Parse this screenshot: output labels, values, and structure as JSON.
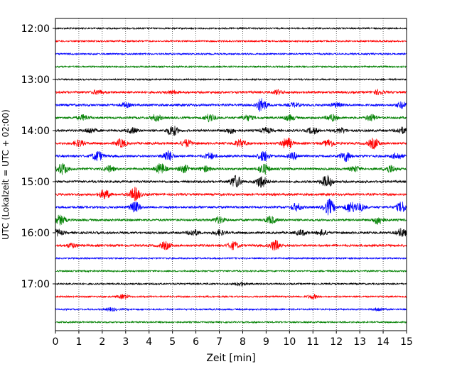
{
  "chart_data": {
    "type": "line",
    "title": "",
    "xlabel": "Zeit  [min]",
    "ylabel": "UTC (Lokalzeit = UTC + 02:00)",
    "xlim": [
      0,
      15
    ],
    "x_ticks": [
      "0",
      "1",
      "2",
      "3",
      "4",
      "5",
      "6",
      "7",
      "8",
      "9",
      "10",
      "11",
      "12",
      "13",
      "14",
      "15"
    ],
    "y_ticks": [
      "12:00",
      "13:00",
      "14:00",
      "15:00",
      "16:00",
      "17:00"
    ],
    "trace_interval_min": 15,
    "grid": "vertical dotted",
    "trace_colors": [
      "#000000",
      "#ff0000",
      "#0000ff",
      "#008000"
    ],
    "traces": [
      {
        "start": "12:00",
        "color": "#000000",
        "events": []
      },
      {
        "start": "12:15",
        "color": "#ff0000",
        "events": []
      },
      {
        "start": "12:30",
        "color": "#0000ff",
        "events": []
      },
      {
        "start": "12:45",
        "color": "#008000",
        "events": []
      },
      {
        "start": "13:00",
        "color": "#000000",
        "events": []
      },
      {
        "start": "13:15",
        "color": "#ff0000",
        "events": [
          [
            1.8,
            0.4
          ],
          [
            5.0,
            0.3
          ],
          [
            9.5,
            0.4
          ],
          [
            13.8,
            0.4
          ]
        ]
      },
      {
        "start": "13:30",
        "color": "#0000ff",
        "events": [
          [
            3.0,
            0.4
          ],
          [
            8.8,
            1.3
          ],
          [
            10.2,
            0.4
          ],
          [
            12.0,
            0.4
          ],
          [
            14.8,
            0.6
          ]
        ]
      },
      {
        "start": "13:45",
        "color": "#008000",
        "events": [
          [
            1.2,
            0.5
          ],
          [
            4.3,
            0.6
          ],
          [
            6.6,
            0.8
          ],
          [
            8.2,
            0.5
          ],
          [
            10.0,
            0.5
          ],
          [
            11.8,
            0.6
          ],
          [
            13.5,
            0.6
          ]
        ]
      },
      {
        "start": "14:00",
        "color": "#000000",
        "events": [
          [
            1.5,
            0.5
          ],
          [
            3.3,
            0.5
          ],
          [
            5.0,
            1.0
          ],
          [
            7.5,
            0.5
          ],
          [
            9.0,
            0.5
          ],
          [
            11.0,
            0.6
          ],
          [
            12.2,
            0.5
          ],
          [
            14.8,
            0.6
          ]
        ]
      },
      {
        "start": "14:15",
        "color": "#ff0000",
        "events": [
          [
            1.0,
            0.6
          ],
          [
            2.8,
            0.8
          ],
          [
            5.6,
            0.7
          ],
          [
            7.9,
            0.7
          ],
          [
            9.9,
            1.1
          ],
          [
            11.7,
            0.7
          ],
          [
            13.6,
            1.0
          ]
        ]
      },
      {
        "start": "14:30",
        "color": "#0000ff",
        "events": [
          [
            1.8,
            1.0
          ],
          [
            4.8,
            1.0
          ],
          [
            6.6,
            0.6
          ],
          [
            8.9,
            1.0
          ],
          [
            10.2,
            0.6
          ],
          [
            12.4,
            1.0
          ],
          [
            14.6,
            0.6
          ]
        ]
      },
      {
        "start": "14:45",
        "color": "#008000",
        "events": [
          [
            0.3,
            1.1
          ],
          [
            2.3,
            0.6
          ],
          [
            4.5,
            1.0
          ],
          [
            5.5,
            0.7
          ],
          [
            6.4,
            0.5
          ],
          [
            8.9,
            1.0
          ],
          [
            12.8,
            0.5
          ],
          [
            14.3,
            0.7
          ]
        ]
      },
      {
        "start": "15:00",
        "color": "#000000",
        "events": [
          [
            7.7,
            1.2
          ],
          [
            8.8,
            1.2
          ],
          [
            11.6,
            1.2
          ]
        ]
      },
      {
        "start": "15:15",
        "color": "#ff0000",
        "events": [
          [
            2.1,
            0.9
          ],
          [
            3.4,
            1.3
          ]
        ]
      },
      {
        "start": "15:30",
        "color": "#0000ff",
        "events": [
          [
            3.4,
            1.0
          ],
          [
            10.3,
            0.7
          ],
          [
            11.7,
            1.5
          ],
          [
            12.6,
            1.0
          ],
          [
            13.0,
            0.7
          ],
          [
            14.8,
            1.0
          ]
        ]
      },
      {
        "start": "15:45",
        "color": "#008000",
        "events": [
          [
            0.2,
            0.9
          ],
          [
            7.0,
            0.6
          ],
          [
            9.2,
            0.7
          ],
          [
            13.8,
            0.8
          ]
        ]
      },
      {
        "start": "16:00",
        "color": "#000000",
        "events": [
          [
            0.1,
            0.6
          ],
          [
            5.9,
            0.6
          ],
          [
            7.0,
            0.5
          ],
          [
            10.5,
            0.5
          ],
          [
            11.4,
            0.5
          ],
          [
            14.8,
            0.8
          ]
        ]
      },
      {
        "start": "16:15",
        "color": "#ff0000",
        "events": [
          [
            0.7,
            0.4
          ],
          [
            4.7,
            0.7
          ],
          [
            7.6,
            0.7
          ],
          [
            9.4,
            1.0
          ]
        ]
      },
      {
        "start": "16:30",
        "color": "#0000ff",
        "events": []
      },
      {
        "start": "16:45",
        "color": "#008000",
        "events": []
      },
      {
        "start": "17:00",
        "color": "#000000",
        "events": [
          [
            7.9,
            0.4
          ]
        ]
      },
      {
        "start": "17:15",
        "color": "#ff0000",
        "events": [
          [
            2.9,
            0.4
          ],
          [
            11.0,
            0.4
          ]
        ]
      },
      {
        "start": "17:30",
        "color": "#0000ff",
        "events": [
          [
            2.4,
            0.3
          ],
          [
            13.8,
            0.3
          ]
        ]
      },
      {
        "start": "17:45",
        "color": "#008000",
        "events": []
      }
    ]
  }
}
